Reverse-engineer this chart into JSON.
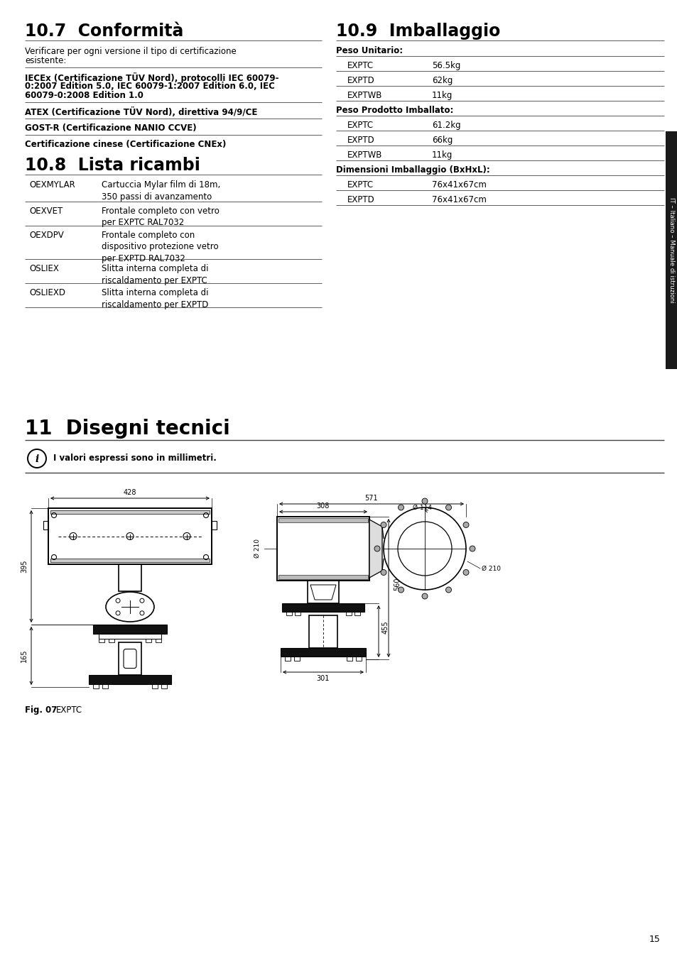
{
  "bg_color": "#ffffff",
  "page_width": 9.54,
  "page_height": 13.54,
  "sidebar_color": "#1a1a1a",
  "sidebar_text": "IT – Italiano – Manuale di istruzioni",
  "s107_title": "10.7  Conformità",
  "s107_intro": "Verificare per ogni versione il tipo di certificazione esistente:",
  "s107_entries": [
    "IECEx (Certificazione TÜV Nord), protocolli IEC 60079-0:2007 Edition 5.0, IEC 60079-1:2007 Edition 6.0, IEC 60079-0:2008 Edition 1.0",
    "ATEX (Certificazione TÜV Nord), direttiva 94/9/CE",
    "GOST-R (Certificazione NANIO CCVE)",
    "Certificazione cinese (Certificazione CNEx)"
  ],
  "s108_title": "10.8  Lista ricambi",
  "s108_rows": [
    {
      "code": "OEXMYLAR",
      "desc": "Cartuccia Mylar film di 18m,\n350 passi di avanzamento"
    },
    {
      "code": "OEXVET",
      "desc": "Frontale completo con vetro\nper EXPTC RAL7032"
    },
    {
      "code": "OEXDPV",
      "desc": "Frontale completo con\ndispositivo protezione vetro\nper EXPTD RAL7032"
    },
    {
      "code": "OSLIEX",
      "desc": "Slitta interna completa di\nriscaldamento per EXPTC"
    },
    {
      "code": "OSLIEXD",
      "desc": "Slitta interna completa di\nriscaldamento per EXPTD"
    }
  ],
  "s109_title": "10.9  Imballaggio",
  "s109_pu_label": "Peso Unitario:",
  "s109_pu": [
    {
      "code": "EXPTC",
      "val": "56.5kg"
    },
    {
      "code": "EXPTD",
      "val": "62kg"
    },
    {
      "code": "EXPTWB",
      "val": "11kg"
    }
  ],
  "s109_pi_label": "Peso Prodotto Imballato:",
  "s109_pi": [
    {
      "code": "EXPTC",
      "val": "61.2kg"
    },
    {
      "code": "EXPTD",
      "val": "66kg"
    },
    {
      "code": "EXPTWB",
      "val": "11kg"
    }
  ],
  "s109_dim_label": "Dimensioni Imballaggio (BxHxL):",
  "s109_dim": [
    {
      "code": "EXPTC",
      "val": "76x41x67cm"
    },
    {
      "code": "EXPTD",
      "val": "76x41x67cm"
    }
  ],
  "s11_title": "11  Disegni tecnici",
  "s11_note": "I valori espressi sono in millimetri.",
  "fig_label_bold": "Fig. 07",
  "fig_label_normal": "    EXPTC",
  "page_number": "15"
}
